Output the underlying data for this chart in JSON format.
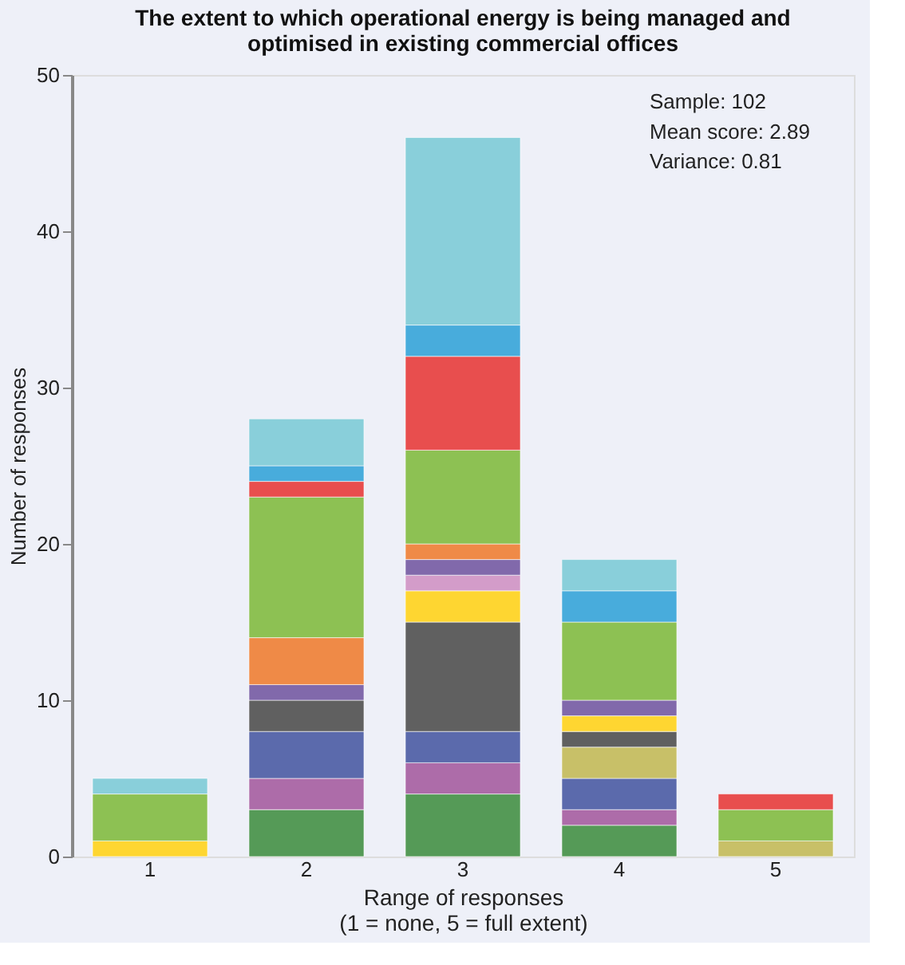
{
  "chart_data": {
    "type": "bar",
    "stacked": true,
    "title": "The extent to which operational energy is being managed and optimised in existing commercial offices",
    "xlabel": "Range of responses\n(1 = none, 5 = full extent)",
    "ylabel": "Number of responses",
    "categories": [
      "1",
      "2",
      "3",
      "4",
      "5"
    ],
    "ylim": [
      0,
      50
    ],
    "yticks": [
      0,
      10,
      20,
      30,
      40,
      50
    ],
    "grid": false,
    "annotations": [
      "Sample: 102",
      "Mean score: 2.89",
      "Variance: 0.81"
    ],
    "series": [
      {
        "color": "#559a57",
        "values": [
          null,
          3,
          4,
          2,
          null
        ]
      },
      {
        "color": "#ad6ca9",
        "values": [
          null,
          2,
          2,
          1,
          null
        ]
      },
      {
        "color": "#5b6aac",
        "values": [
          null,
          3,
          2,
          2,
          null
        ]
      },
      {
        "color": "#c8c068",
        "values": [
          null,
          null,
          null,
          2,
          1
        ]
      },
      {
        "color": "#606060",
        "values": [
          null,
          2,
          7,
          1,
          null
        ]
      },
      {
        "color": "#fed631",
        "values": [
          1,
          null,
          2,
          1,
          null
        ]
      },
      {
        "color": "#d39cc9",
        "values": [
          null,
          null,
          1,
          null,
          null
        ]
      },
      {
        "color": "#8169ab",
        "values": [
          null,
          1,
          1,
          1,
          null
        ]
      },
      {
        "color": "#ef8a47",
        "values": [
          null,
          3,
          1,
          null,
          null
        ]
      },
      {
        "color": "#8dc153",
        "values": [
          3,
          9,
          6,
          5,
          2
        ]
      },
      {
        "color": "#e84e4e",
        "values": [
          null,
          1,
          6,
          null,
          1
        ]
      },
      {
        "color": "#48acdc",
        "values": [
          null,
          1,
          2,
          2,
          null
        ]
      },
      {
        "color": "#89cfda",
        "values": [
          1,
          3,
          12,
          2,
          null
        ]
      }
    ]
  }
}
